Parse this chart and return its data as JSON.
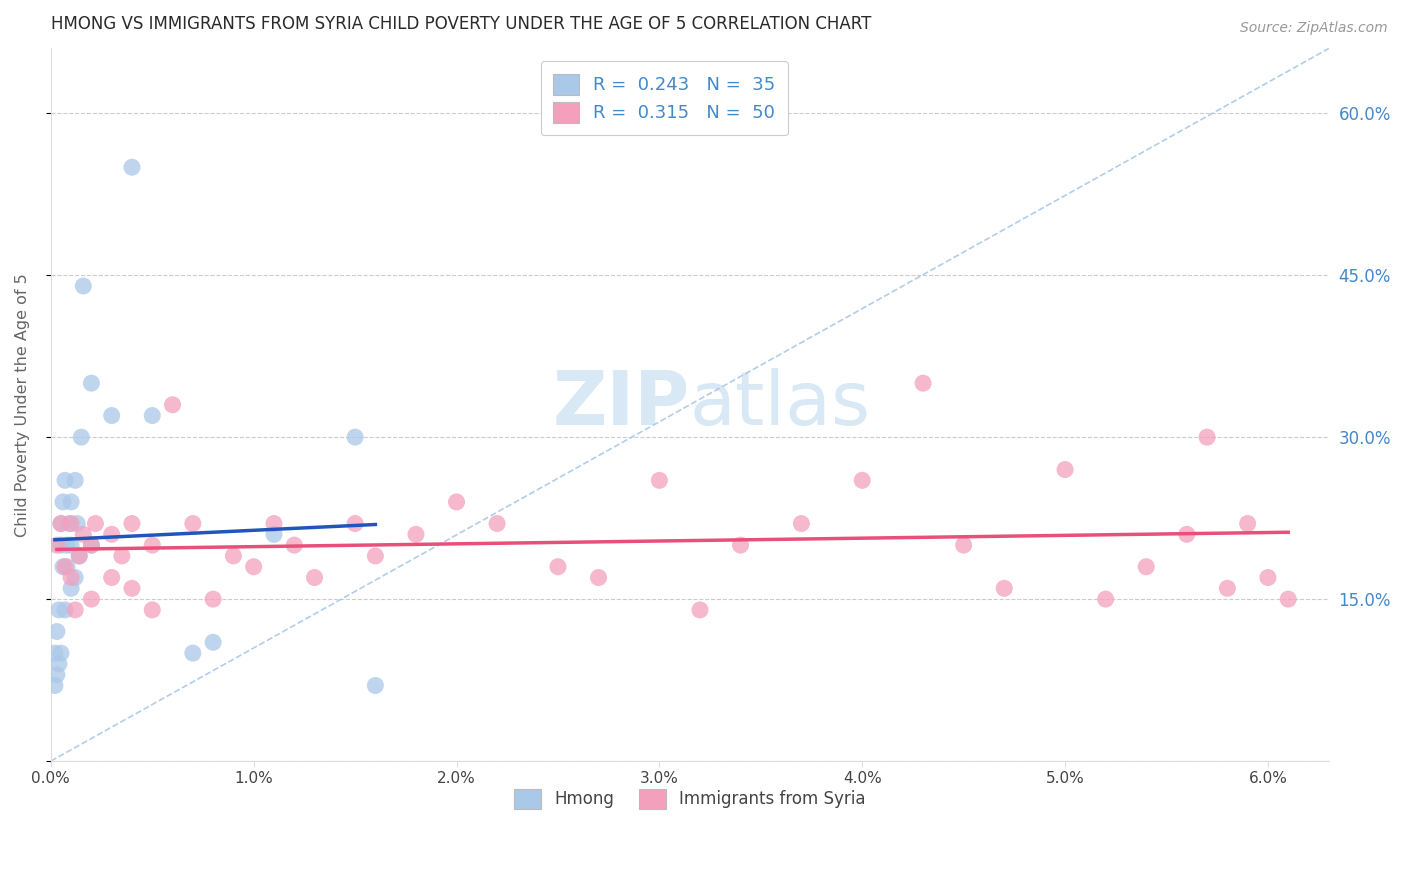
{
  "title": "HMONG VS IMMIGRANTS FROM SYRIA CHILD POVERTY UNDER THE AGE OF 5 CORRELATION CHART",
  "source": "Source: ZipAtlas.com",
  "ylabel": "Child Poverty Under the Age of 5",
  "ytick_values": [
    0.0,
    0.15,
    0.3,
    0.45,
    0.6
  ],
  "ytick_labels_right": [
    "",
    "15.0%",
    "30.0%",
    "45.0%",
    "60.0%"
  ],
  "xtick_values": [
    0.0,
    0.01,
    0.02,
    0.03,
    0.04,
    0.05,
    0.06
  ],
  "xlim": [
    0.0,
    0.063
  ],
  "ylim": [
    0.0,
    0.66
  ],
  "legend_label1": "Hmong",
  "legend_label2": "Immigrants from Syria",
  "R1": "0.243",
  "N1": "35",
  "R2": "0.315",
  "N2": "50",
  "color_hmong": "#aac8e8",
  "color_syria": "#f4a0bc",
  "line_color_hmong": "#2255bb",
  "line_color_syria": "#e8507a",
  "dashed_line_color": "#aac8e8",
  "background_color": "#ffffff",
  "grid_color": "#cccccc",
  "title_color": "#2a2a2a",
  "axis_label_color": "#4488cc",
  "watermark_color": "#ddeeff",
  "hmong_x": [
    0.0002,
    0.0002,
    0.0003,
    0.0003,
    0.0004,
    0.0004,
    0.0005,
    0.0005,
    0.0005,
    0.0006,
    0.0006,
    0.0007,
    0.0007,
    0.0008,
    0.0008,
    0.0009,
    0.001,
    0.001,
    0.001,
    0.0012,
    0.0012,
    0.0013,
    0.0014,
    0.0015,
    0.0016,
    0.002,
    0.002,
    0.003,
    0.004,
    0.005,
    0.007,
    0.008,
    0.011,
    0.015,
    0.016
  ],
  "hmong_y": [
    0.07,
    0.1,
    0.08,
    0.12,
    0.09,
    0.14,
    0.1,
    0.2,
    0.22,
    0.18,
    0.24,
    0.14,
    0.26,
    0.2,
    0.18,
    0.22,
    0.16,
    0.2,
    0.24,
    0.17,
    0.26,
    0.22,
    0.19,
    0.3,
    0.44,
    0.2,
    0.35,
    0.32,
    0.55,
    0.32,
    0.1,
    0.11,
    0.21,
    0.3,
    0.07
  ],
  "syria_x": [
    0.0003,
    0.0005,
    0.0007,
    0.001,
    0.001,
    0.0012,
    0.0014,
    0.0016,
    0.002,
    0.002,
    0.0022,
    0.003,
    0.003,
    0.0035,
    0.004,
    0.004,
    0.005,
    0.005,
    0.006,
    0.007,
    0.008,
    0.009,
    0.01,
    0.011,
    0.012,
    0.013,
    0.015,
    0.016,
    0.018,
    0.02,
    0.022,
    0.025,
    0.027,
    0.03,
    0.032,
    0.034,
    0.037,
    0.04,
    0.043,
    0.045,
    0.047,
    0.05,
    0.052,
    0.054,
    0.056,
    0.057,
    0.058,
    0.059,
    0.06,
    0.061
  ],
  "syria_y": [
    0.2,
    0.22,
    0.18,
    0.17,
    0.22,
    0.14,
    0.19,
    0.21,
    0.15,
    0.2,
    0.22,
    0.17,
    0.21,
    0.19,
    0.22,
    0.16,
    0.2,
    0.14,
    0.33,
    0.22,
    0.15,
    0.19,
    0.18,
    0.22,
    0.2,
    0.17,
    0.22,
    0.19,
    0.21,
    0.24,
    0.22,
    0.18,
    0.17,
    0.26,
    0.14,
    0.2,
    0.22,
    0.26,
    0.35,
    0.2,
    0.16,
    0.27,
    0.15,
    0.18,
    0.21,
    0.3,
    0.16,
    0.22,
    0.17,
    0.15
  ]
}
